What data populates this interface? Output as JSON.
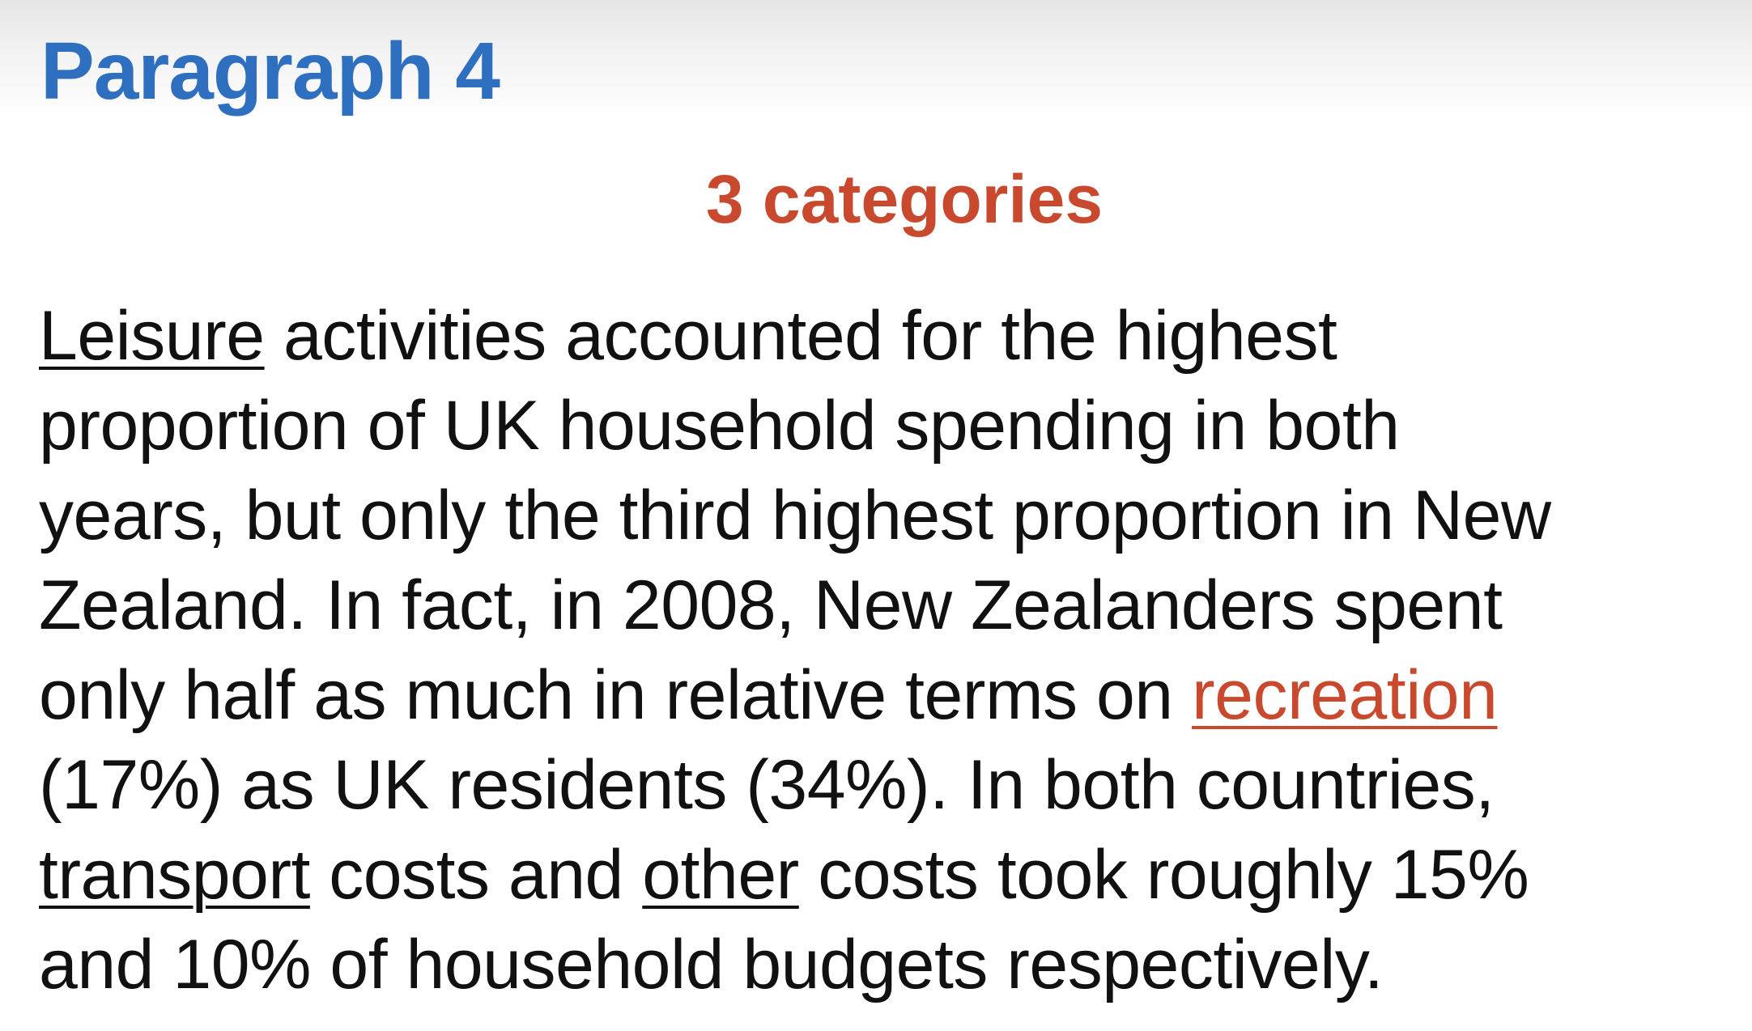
{
  "slide": {
    "title": "Paragraph 4",
    "subtitle": "3 categories",
    "colors": {
      "title": "#2f6fc0",
      "subtitle": "#c8492d",
      "highlight_keyword": "#c8492d",
      "body": "#111111"
    },
    "paragraph": {
      "l1_key": "Leisure",
      "l1_rest": " activities accounted for the highest",
      "l2": "proportion of UK household spending in both",
      "l3": "years, but only the third highest proportion in New",
      "l4": "Zealand. In fact, in 2008, New Zealanders spent",
      "l5_pre": "only half as much in relative terms on ",
      "l5_key": "recreation",
      "l6": "(17%) as UK residents (34%). In both countries,",
      "l7_key1": "transport",
      "l7_mid": " costs and ",
      "l7_key2": "other",
      "l7_rest": " costs took roughly 15%",
      "l8": "and 10% of household budgets respectively."
    }
  }
}
